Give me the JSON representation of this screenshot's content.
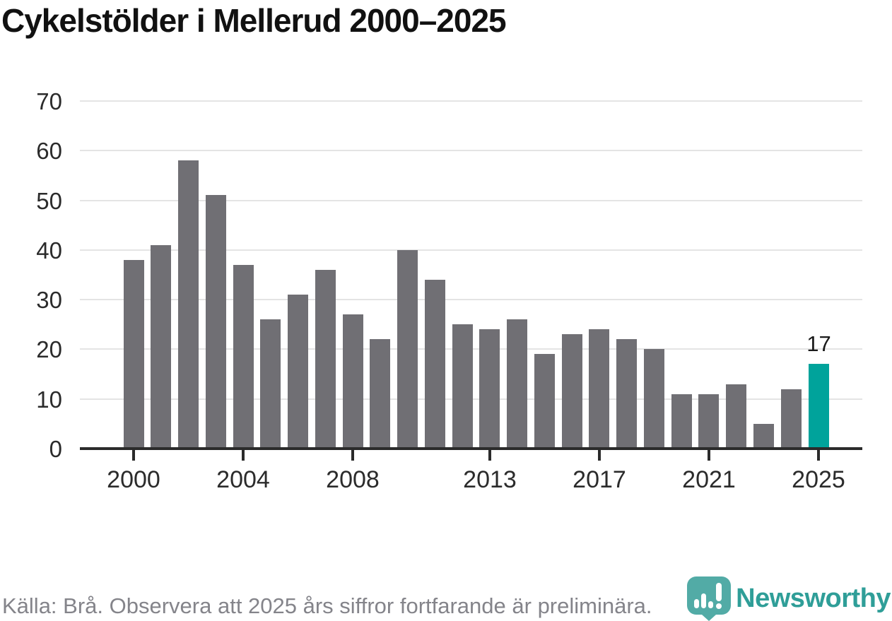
{
  "title": "Cykelstölder i Mellerud 2000–2025",
  "footer": {
    "source_note": "Källa: Brå. Observera att 2025 års siffror fortfarande är preliminära."
  },
  "branding": {
    "name": "Newsworthy",
    "icon": "newsworthy-pin-bar-chart-icon",
    "text_color": "#2F9E98",
    "icon_color": "#43A49E"
  },
  "colors": {
    "bar_default": "#706F74",
    "bar_highlight": "#00A39B",
    "gridline": "#e4e4e4",
    "axis": "#2b2b2b"
  },
  "chart_data": {
    "type": "bar",
    "title": "Cykelstölder i Mellerud 2000–2025",
    "categories": [
      2000,
      2001,
      2002,
      2003,
      2004,
      2005,
      2006,
      2007,
      2008,
      2009,
      2010,
      2011,
      2012,
      2013,
      2014,
      2015,
      2016,
      2017,
      2018,
      2019,
      2020,
      2021,
      2022,
      2023,
      2024,
      2025
    ],
    "values": [
      38,
      41,
      58,
      51,
      37,
      26,
      31,
      36,
      27,
      22,
      40,
      34,
      25,
      24,
      26,
      19,
      23,
      24,
      22,
      20,
      11,
      11,
      13,
      5,
      12,
      17
    ],
    "xlabel": "",
    "ylabel": "",
    "ylim": [
      0,
      70
    ],
    "yticks": [
      0,
      10,
      20,
      30,
      40,
      50,
      60,
      70
    ],
    "xticks": [
      2000,
      2004,
      2008,
      2013,
      2017,
      2021,
      2025
    ],
    "grid": "horizontal",
    "legend": "none",
    "highlight": {
      "year": 2025,
      "value": 17,
      "label": "17"
    }
  }
}
